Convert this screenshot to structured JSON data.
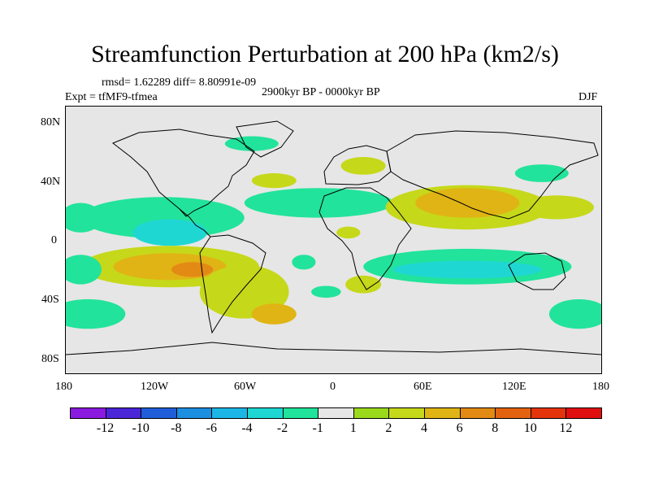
{
  "chart_data": {
    "type": "heatmap",
    "title": "Streamfunction Perturbation at 200 hPa (km2/s)",
    "stats": "rmsd= 1.62289 diff= 8.80991e-09",
    "experiment": "Expt = tfMF9-tfmea",
    "period": "2900kyr BP - 0000kyr BP",
    "season": "DJF",
    "x_ticks": [
      "180",
      "120W",
      "60W",
      "0",
      "60E",
      "120E",
      "180"
    ],
    "y_ticks": [
      "80N",
      "40N",
      "0",
      "40S",
      "80S"
    ],
    "xlim": [
      -180,
      180
    ],
    "ylim": [
      -90,
      90
    ],
    "colorbar": {
      "labels": [
        "-12",
        "-10",
        "-8",
        "-6",
        "-4",
        "-2",
        "-1",
        "1",
        "2",
        "4",
        "6",
        "8",
        "10",
        "12"
      ],
      "colors": [
        "#8a1adf",
        "#4a26d8",
        "#1f5ed8",
        "#1c8fe0",
        "#1cb6e6",
        "#1fd7d2",
        "#22e39b",
        "#e6e6e6",
        "#9bd91c",
        "#c6d81a",
        "#e0b414",
        "#e38a14",
        "#e3620f",
        "#e3340c",
        "#e00f0f"
      ]
    },
    "anomalies": [
      {
        "lon": -115,
        "lat": 15,
        "rlon": 55,
        "rlat": 14,
        "level": "-2"
      },
      {
        "lon": -110,
        "lat": 5,
        "rlon": 25,
        "rlat": 9,
        "level": "-4"
      },
      {
        "lon": -10,
        "lat": 25,
        "rlon": 50,
        "rlat": 10,
        "level": "-2"
      },
      {
        "lon": -170,
        "lat": 15,
        "rlon": 14,
        "rlat": 10,
        "level": "-2"
      },
      {
        "lon": -110,
        "lat": -18,
        "rlon": 60,
        "rlat": 14,
        "level": "2"
      },
      {
        "lon": -110,
        "lat": -18,
        "rlon": 38,
        "rlat": 9,
        "level": "4"
      },
      {
        "lon": -95,
        "lat": -20,
        "rlon": 14,
        "rlat": 5,
        "level": "6"
      },
      {
        "lon": -60,
        "lat": -35,
        "rlon": 30,
        "rlat": 18,
        "level": "2"
      },
      {
        "lon": -40,
        "lat": -50,
        "rlon": 15,
        "rlat": 7,
        "level": "4"
      },
      {
        "lon": 90,
        "lat": 22,
        "rlon": 55,
        "rlat": 15,
        "level": "2"
      },
      {
        "lon": 90,
        "lat": 25,
        "rlon": 35,
        "rlat": 10,
        "level": "4"
      },
      {
        "lon": 150,
        "lat": 22,
        "rlon": 25,
        "rlat": 8,
        "level": "2"
      },
      {
        "lon": 90,
        "lat": -18,
        "rlon": 70,
        "rlat": 12,
        "level": "-2"
      },
      {
        "lon": 90,
        "lat": -20,
        "rlon": 50,
        "rlat": 6,
        "level": "-4"
      },
      {
        "lon": 140,
        "lat": 45,
        "rlon": 18,
        "rlat": 6,
        "level": "-2"
      },
      {
        "lon": -165,
        "lat": -50,
        "rlon": 25,
        "rlat": 10,
        "level": "-2"
      },
      {
        "lon": 165,
        "lat": -50,
        "rlon": 20,
        "rlat": 10,
        "level": "-2"
      },
      {
        "lon": -170,
        "lat": -20,
        "rlon": 14,
        "rlat": 10,
        "level": "-2"
      },
      {
        "lon": 20,
        "lat": -30,
        "rlon": 12,
        "rlat": 6,
        "level": "2"
      },
      {
        "lon": -55,
        "lat": 65,
        "rlon": 18,
        "rlat": 5,
        "level": "-2"
      },
      {
        "lon": 20,
        "lat": 50,
        "rlon": 15,
        "rlat": 6,
        "level": "2"
      },
      {
        "lon": -40,
        "lat": 40,
        "rlon": 15,
        "rlat": 5,
        "level": "2"
      },
      {
        "lon": 10,
        "lat": 5,
        "rlon": 8,
        "rlat": 4,
        "level": "2"
      },
      {
        "lon": -20,
        "lat": -15,
        "rlon": 8,
        "rlat": 5,
        "level": "-2"
      },
      {
        "lon": -5,
        "lat": -35,
        "rlon": 10,
        "rlat": 4,
        "level": "-2"
      }
    ]
  }
}
